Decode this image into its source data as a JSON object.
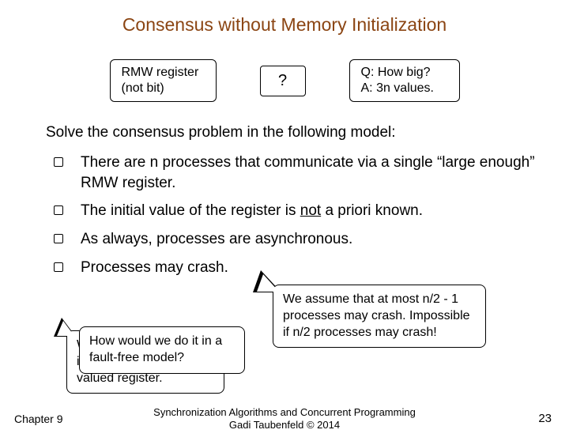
{
  "title": "Consensus without Memory Initialization",
  "boxes": {
    "rmw_line1": "RMW register",
    "rmw_line2": "(not bit)",
    "question_mark": "?",
    "qa_line1": "Q: How big?",
    "qa_line2": "A: 3n values."
  },
  "solve_line": "Solve the consensus problem in the following model:",
  "bullets": [
    "There are n processes that communicate via a single “large enough” RMW register.",
    "The initial value of the register is __U__not__/U__ a priori known.",
    "As always, processes are asynchronous.",
    "Processes may crash."
  ],
  "callouts": {
    "back_left": "W … it … valued register.",
    "front_left": "How would we do it in a fault-free model?",
    "right": "We assume that at most n/2 - 1 processes may crash. Impossible if n/2 processes may crash!"
  },
  "footer": {
    "chapter": "Chapter 9",
    "credit_line1": "Synchronization Algorithms and Concurrent Programming",
    "credit_line2": "Gadi Taubenfeld © 2014",
    "page_number": "23"
  },
  "colors": {
    "title_color": "#8b4513",
    "bg": "#ffffff",
    "text": "#000000"
  }
}
